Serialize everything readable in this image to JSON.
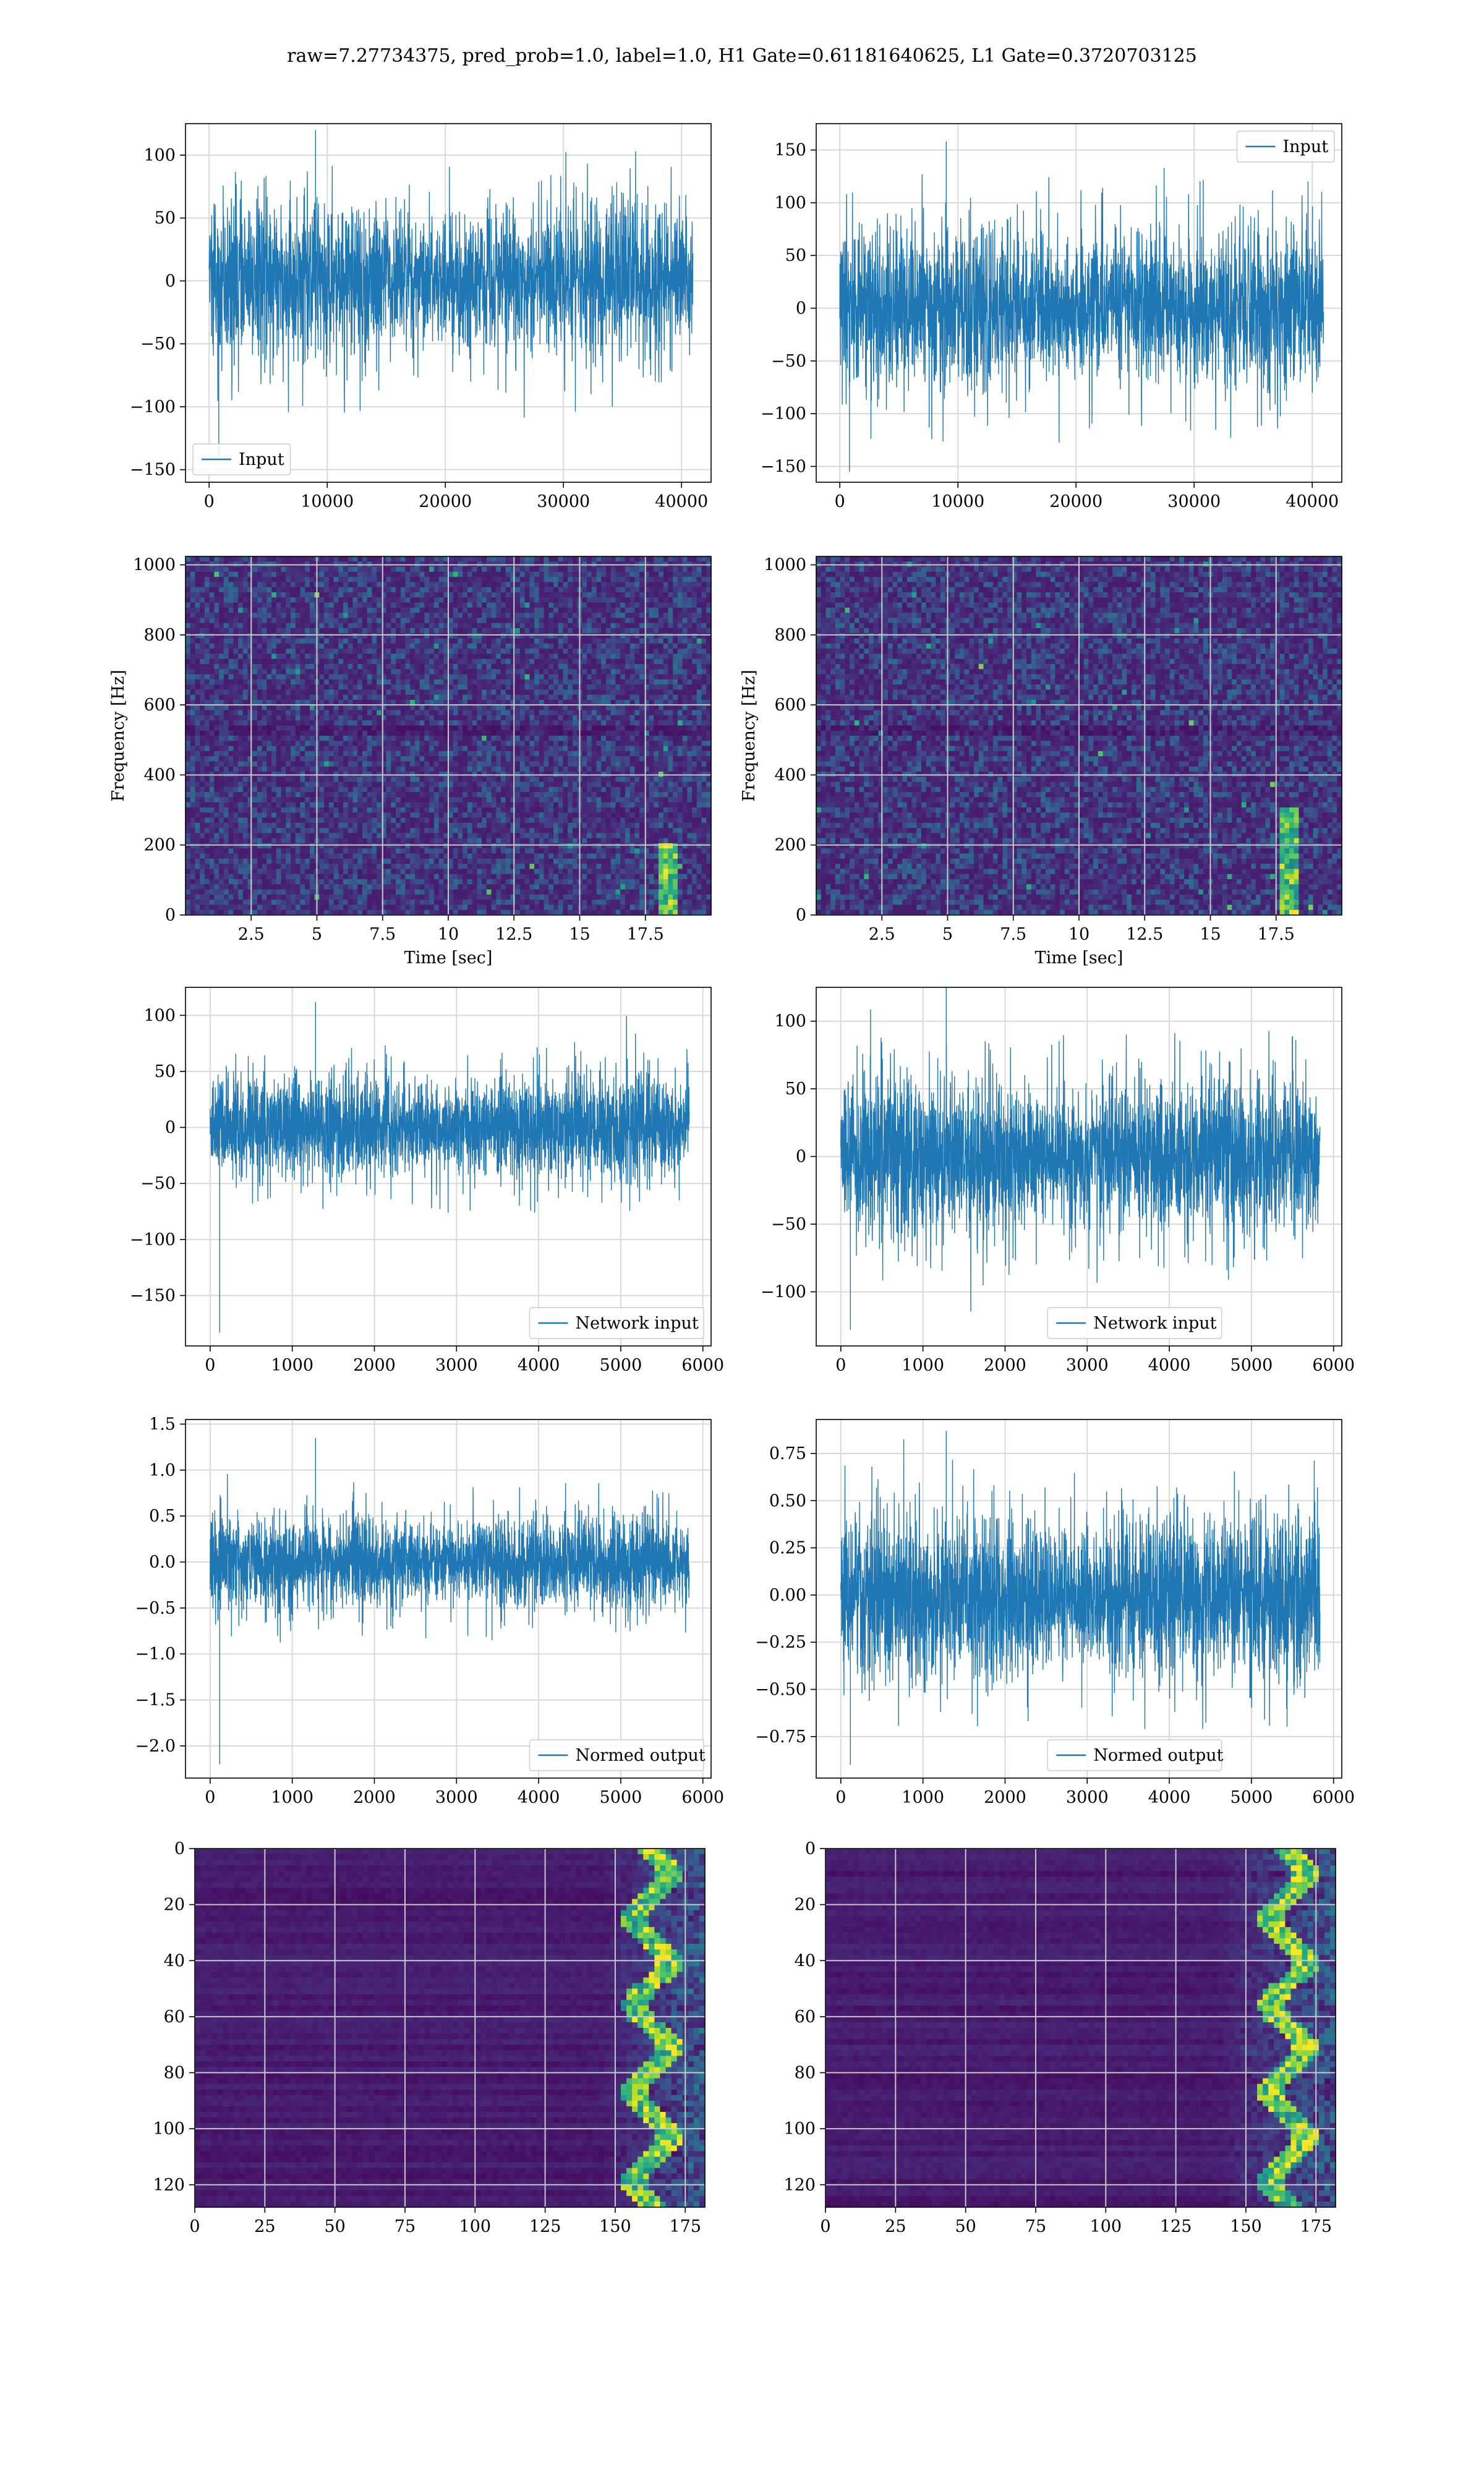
{
  "figure": {
    "title": "raw=7.27734375, pred_prob=1.0, label=1.0, H1 Gate=0.61181640625, L1 Gate=0.3720703125",
    "colors": {
      "series": "#1f77b4",
      "grid": "#d9d9d9",
      "spec_base": "#3b1e6b",
      "spec_dark": "#440154",
      "spec_hot": "#fde725"
    }
  },
  "chart_data": [
    {
      "id": "h1-input",
      "type": "line",
      "legend": {
        "label": "Input",
        "placement": "lower-left"
      },
      "xlim": [
        -2000,
        42500
      ],
      "ylim": [
        -160,
        125
      ],
      "xticks": [
        0,
        10000,
        20000,
        30000,
        40000
      ],
      "yticks": [
        -150,
        -100,
        -50,
        0,
        50,
        100
      ],
      "grid": true,
      "series": [
        {
          "n": 40960,
          "core_amplitude": 62,
          "peak_max": 120,
          "peak_min": -142
        }
      ]
    },
    {
      "id": "l1-input",
      "type": "line",
      "legend": {
        "label": "Input",
        "placement": "upper-right"
      },
      "xlim": [
        -2000,
        42500
      ],
      "ylim": [
        -165,
        175
      ],
      "xticks": [
        0,
        10000,
        20000,
        30000,
        40000
      ],
      "yticks": [
        -150,
        -100,
        -50,
        0,
        50,
        100,
        150
      ],
      "grid": true,
      "series": [
        {
          "n": 40960,
          "core_amplitude": 75,
          "peak_max": 158,
          "peak_min": -155
        }
      ]
    },
    {
      "id": "h1-spectrogram",
      "type": "heatmap",
      "xlabel": "Time [sec]",
      "ylabel": "Frequency [Hz]",
      "xlim": [
        0,
        20
      ],
      "ylim": [
        0,
        1024
      ],
      "xticks": [
        2.5,
        5.0,
        7.5,
        10.0,
        12.5,
        15.0,
        17.5
      ],
      "yticks": [
        0,
        200,
        400,
        600,
        800,
        1000
      ],
      "grid": true,
      "colormap": "viridis",
      "features": {
        "chirp_time_sec": 18.3,
        "chirp_freq_max_hz": 200
      }
    },
    {
      "id": "l1-spectrogram",
      "type": "heatmap",
      "xlabel": "Time [sec]",
      "ylabel": "Frequency [Hz]",
      "xlim": [
        0,
        20
      ],
      "ylim": [
        0,
        1024
      ],
      "xticks": [
        2.5,
        5.0,
        7.5,
        10.0,
        12.5,
        15.0,
        17.5
      ],
      "yticks": [
        0,
        200,
        400,
        600,
        800,
        1000
      ],
      "grid": true,
      "colormap": "viridis",
      "features": {
        "chirp_time_sec": 18.0,
        "chirp_freq_max_hz": 300
      }
    },
    {
      "id": "h1-network-input",
      "type": "line",
      "legend": {
        "label": "Network input",
        "placement": "lower-right"
      },
      "xlim": [
        -300,
        6100
      ],
      "ylim": [
        -195,
        125
      ],
      "xticks": [
        0,
        1000,
        2000,
        3000,
        4000,
        5000,
        6000
      ],
      "yticks": [
        -150,
        -100,
        -50,
        0,
        50,
        100
      ],
      "grid": true,
      "series": [
        {
          "n": 5835,
          "core_amplitude": 45,
          "peak_max": 112,
          "peak_min": -183
        }
      ]
    },
    {
      "id": "l1-network-input",
      "type": "line",
      "legend": {
        "label": "Network input",
        "placement": "lower-center"
      },
      "xlim": [
        -300,
        6100
      ],
      "ylim": [
        -140,
        125
      ],
      "xticks": [
        0,
        1000,
        2000,
        3000,
        4000,
        5000,
        6000
      ],
      "yticks": [
        -100,
        -50,
        0,
        50,
        100
      ],
      "grid": true,
      "series": [
        {
          "n": 5835,
          "core_amplitude": 55,
          "peak_max": 125,
          "peak_min": -128
        }
      ]
    },
    {
      "id": "h1-normed-output",
      "type": "line",
      "legend": {
        "label": "Normed output",
        "placement": "lower-right"
      },
      "xlim": [
        -300,
        6100
      ],
      "ylim": [
        -2.35,
        1.55
      ],
      "xticks": [
        0,
        1000,
        2000,
        3000,
        4000,
        5000,
        6000
      ],
      "yticks": [
        -2.0,
        -1.5,
        -1.0,
        -0.5,
        0.0,
        0.5,
        1.0,
        1.5
      ],
      "tick_decimals": 1,
      "grid": true,
      "series": [
        {
          "n": 5835,
          "core_amplitude": 0.5,
          "peak_max": 1.35,
          "peak_min": -2.2
        }
      ]
    },
    {
      "id": "l1-normed-output",
      "type": "line",
      "legend": {
        "label": "Normed output",
        "placement": "lower-center"
      },
      "xlim": [
        -300,
        6100
      ],
      "ylim": [
        -0.97,
        0.93
      ],
      "xticks": [
        0,
        1000,
        2000,
        3000,
        4000,
        5000,
        6000
      ],
      "yticks": [
        -0.75,
        -0.5,
        -0.25,
        0.0,
        0.25,
        0.5,
        0.75
      ],
      "tick_decimals": 2,
      "grid": true,
      "series": [
        {
          "n": 5835,
          "core_amplitude": 0.42,
          "peak_max": 0.87,
          "peak_min": -0.9
        }
      ]
    },
    {
      "id": "h1-feature-map",
      "type": "heatmap",
      "xlim": [
        0,
        182
      ],
      "ylim": [
        128,
        0
      ],
      "xticks": [
        0,
        25,
        50,
        75,
        100,
        125,
        150,
        175
      ],
      "yticks": [
        0,
        20,
        40,
        60,
        80,
        100,
        120
      ],
      "grid": true,
      "colormap": "viridis",
      "features": {
        "active_column_start": 145,
        "peak_column": 163
      }
    },
    {
      "id": "l1-feature-map",
      "type": "heatmap",
      "xlim": [
        0,
        182
      ],
      "ylim": [
        128,
        0
      ],
      "xticks": [
        0,
        25,
        50,
        75,
        100,
        125,
        150,
        175
      ],
      "yticks": [
        0,
        20,
        40,
        60,
        80,
        100,
        120
      ],
      "grid": true,
      "colormap": "viridis",
      "features": {
        "active_column_start": 140,
        "peak_column": 165
      }
    }
  ]
}
